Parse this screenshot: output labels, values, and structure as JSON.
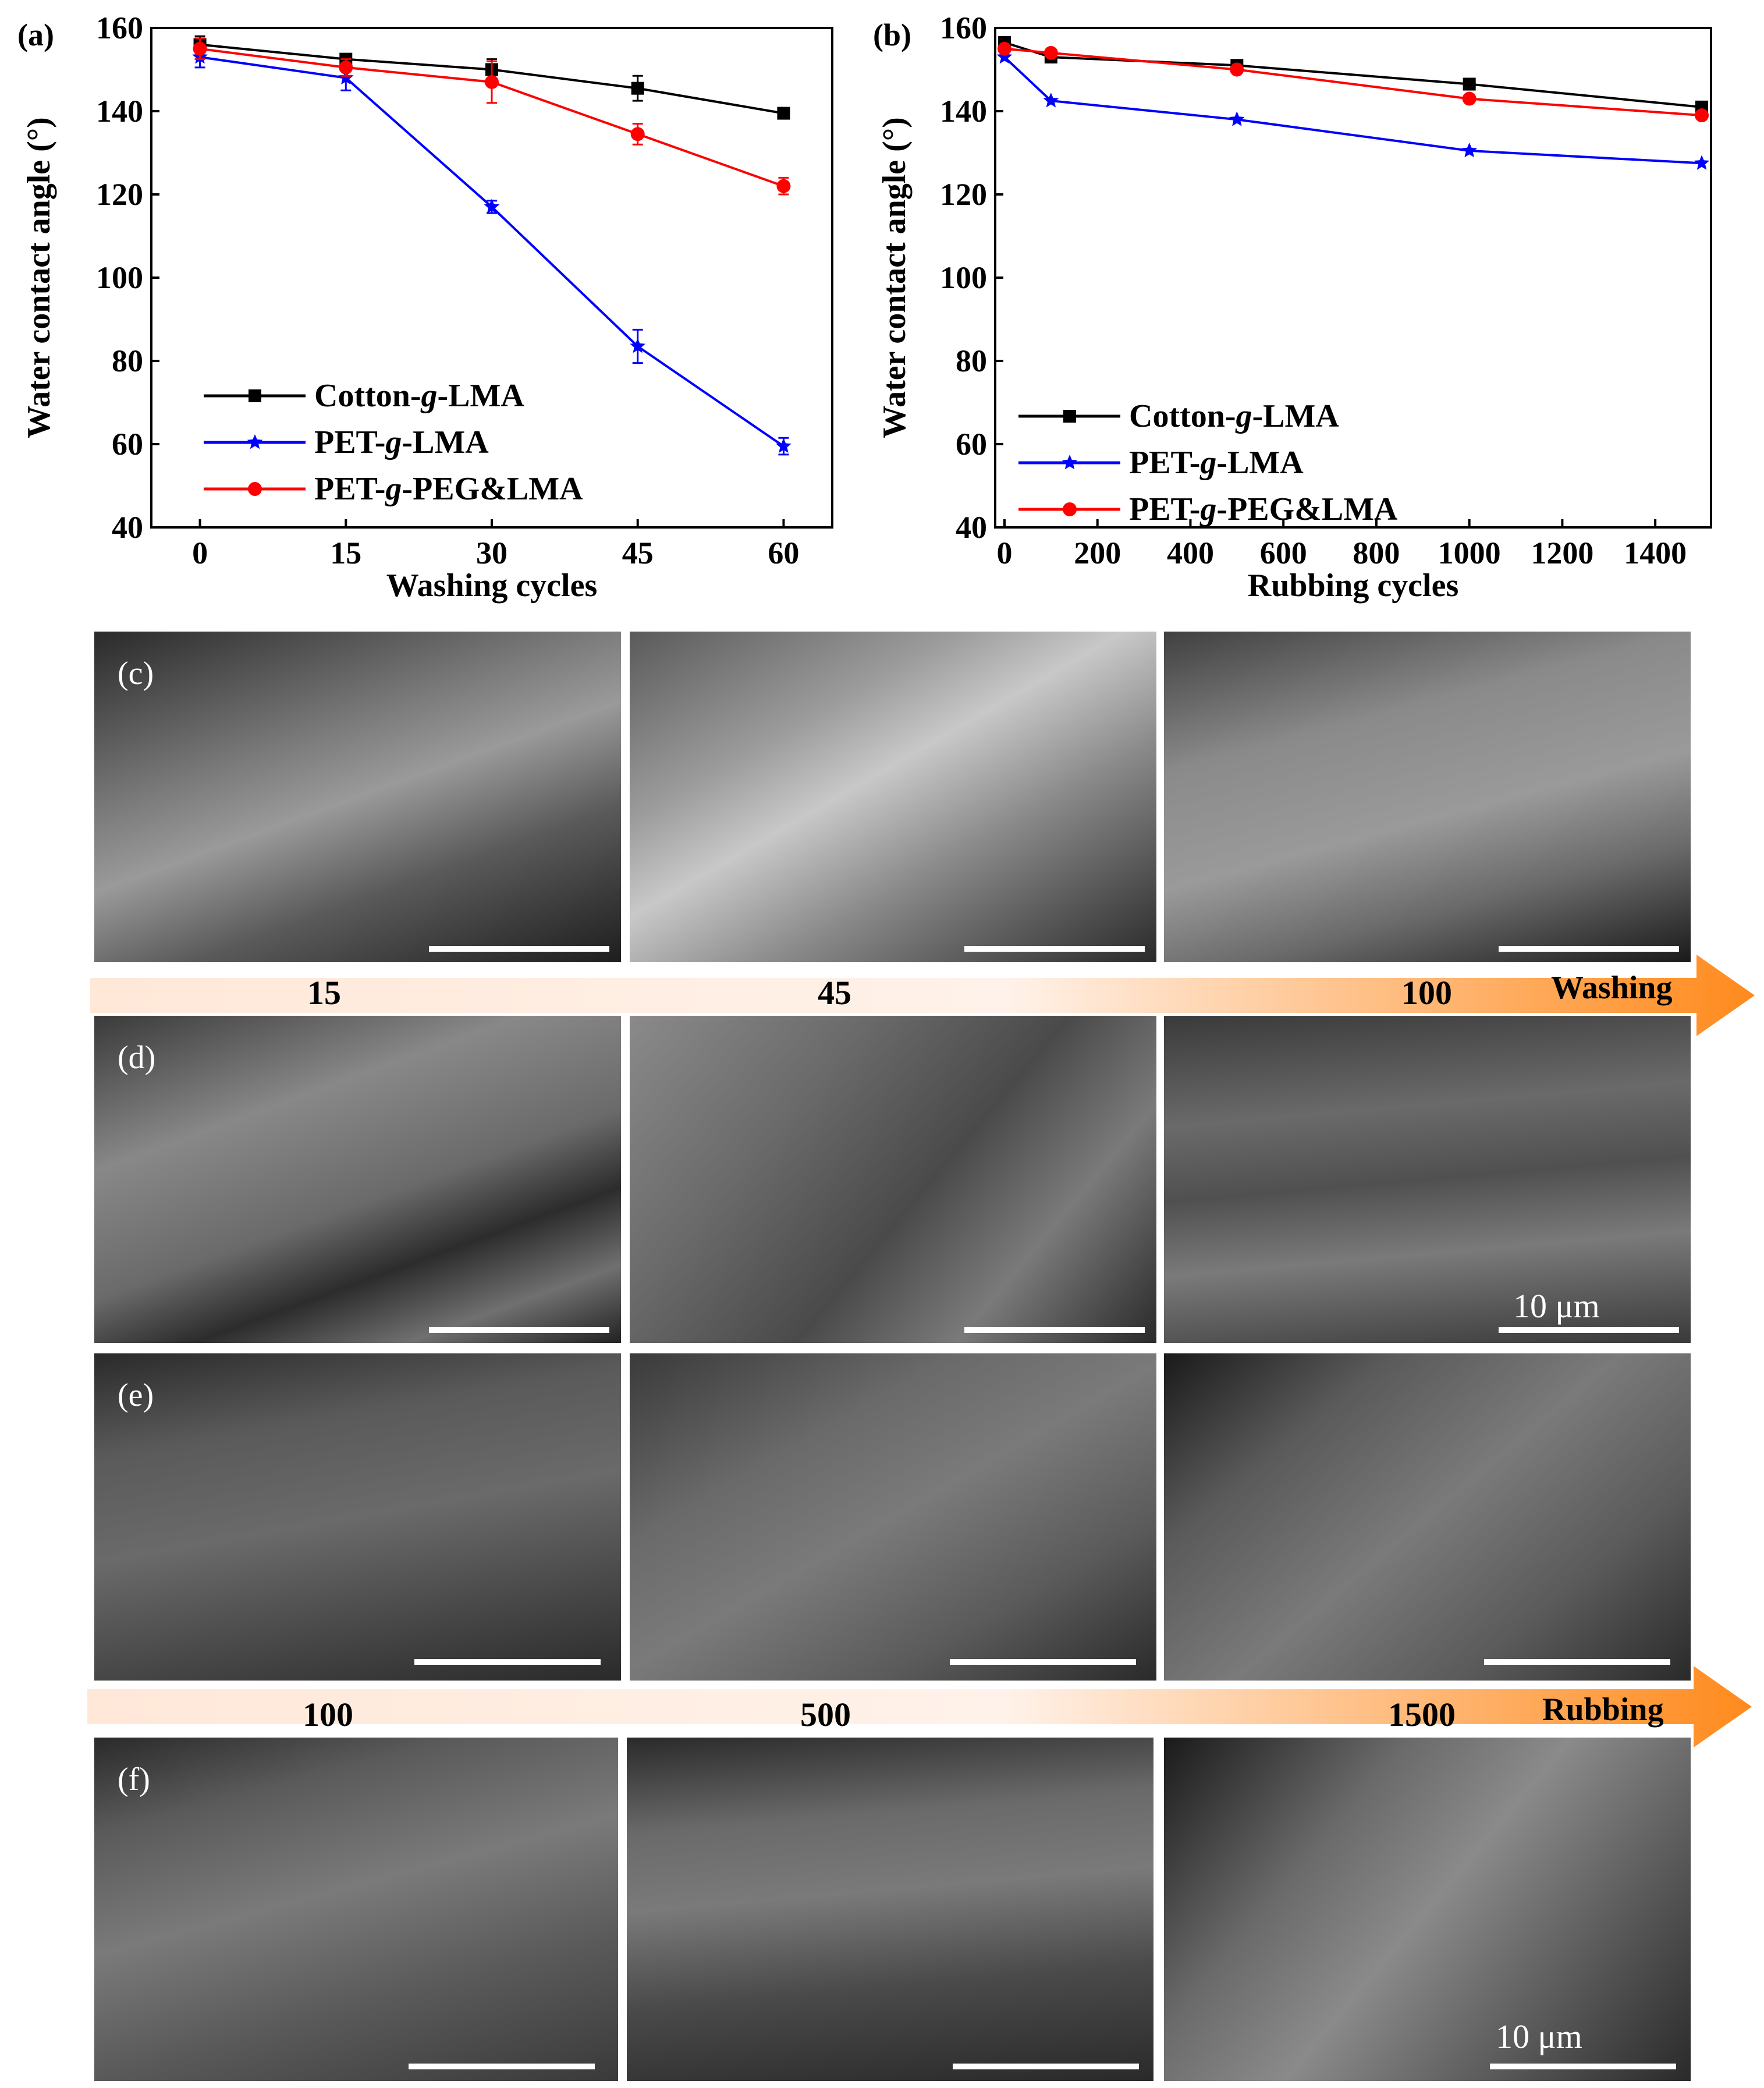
{
  "chart_data": [
    {
      "type": "line",
      "panel_label": "(a)",
      "xlabel": "Washing cycles",
      "ylabel": "Water contact angle (°)",
      "xlim": [
        -5,
        65
      ],
      "ylim": [
        40,
        160
      ],
      "xticks": [
        0,
        15,
        30,
        45,
        60
      ],
      "yticks": [
        40,
        60,
        80,
        100,
        120,
        140,
        160
      ],
      "legend_position": "bottom-left",
      "series": [
        {
          "name": "Cotton-g-LMA",
          "color": "#000000",
          "marker": "square",
          "x": [
            0,
            15,
            30,
            45,
            60
          ],
          "y": [
            156,
            152.5,
            150,
            145.5,
            139.5
          ],
          "err": [
            2,
            1,
            2.5,
            3,
            1
          ]
        },
        {
          "name": "PET-g-LMA",
          "color": "#0000ff",
          "marker": "star",
          "x": [
            0,
            15,
            30,
            45,
            60
          ],
          "y": [
            153,
            148,
            117,
            83.5,
            59.5
          ],
          "err": [
            2.5,
            3,
            1.5,
            4,
            2
          ]
        },
        {
          "name": "PET-g-PEG&LMA",
          "color": "#ff0000",
          "marker": "circle",
          "x": [
            0,
            15,
            30,
            45,
            60
          ],
          "y": [
            155,
            150.5,
            147,
            134.5,
            122
          ],
          "err": [
            2.5,
            2,
            5,
            2.5,
            2
          ]
        }
      ]
    },
    {
      "type": "line",
      "panel_label": "(b)",
      "xlabel": "Rubbing cycles",
      "ylabel": "Water contact angle (°)",
      "xlim": [
        -20,
        1520
      ],
      "ylim": [
        40,
        160
      ],
      "xticks": [
        0,
        200,
        400,
        600,
        800,
        1000,
        1200,
        1400
      ],
      "yticks": [
        40,
        60,
        80,
        100,
        120,
        140,
        160
      ],
      "legend_position": "bottom-left",
      "series": [
        {
          "name": "Cotton-g-LMA",
          "color": "#000000",
          "marker": "square",
          "x": [
            0,
            100,
            500,
            1000,
            1500
          ],
          "y": [
            156.5,
            153,
            151,
            146.5,
            141
          ]
        },
        {
          "name": "PET-g-LMA",
          "color": "#0000ff",
          "marker": "star",
          "x": [
            0,
            100,
            500,
            1000,
            1500
          ],
          "y": [
            153,
            142.5,
            138,
            130.5,
            127.5
          ]
        },
        {
          "name": "PET-g-PEG&LMA",
          "color": "#ff0000",
          "marker": "circle",
          "x": [
            0,
            100,
            500,
            1000,
            1500
          ],
          "y": [
            155,
            154,
            150,
            143,
            139
          ]
        }
      ]
    }
  ],
  "sem": {
    "rows": [
      {
        "label": "(c)",
        "scale_text": ""
      },
      {
        "label": "(d)",
        "scale_text": "10 μm"
      },
      {
        "label": "(e)",
        "scale_text": ""
      },
      {
        "label": "(f)",
        "scale_text": "10 μm"
      }
    ]
  },
  "arrows": {
    "washing": {
      "labels": [
        "15",
        "45",
        "100"
      ],
      "word": "Washing",
      "color": "#ff8a1c"
    },
    "rubbing": {
      "labels": [
        "100",
        "500",
        "1500"
      ],
      "word": "Rubbing",
      "color": "#ff8a1c"
    }
  }
}
